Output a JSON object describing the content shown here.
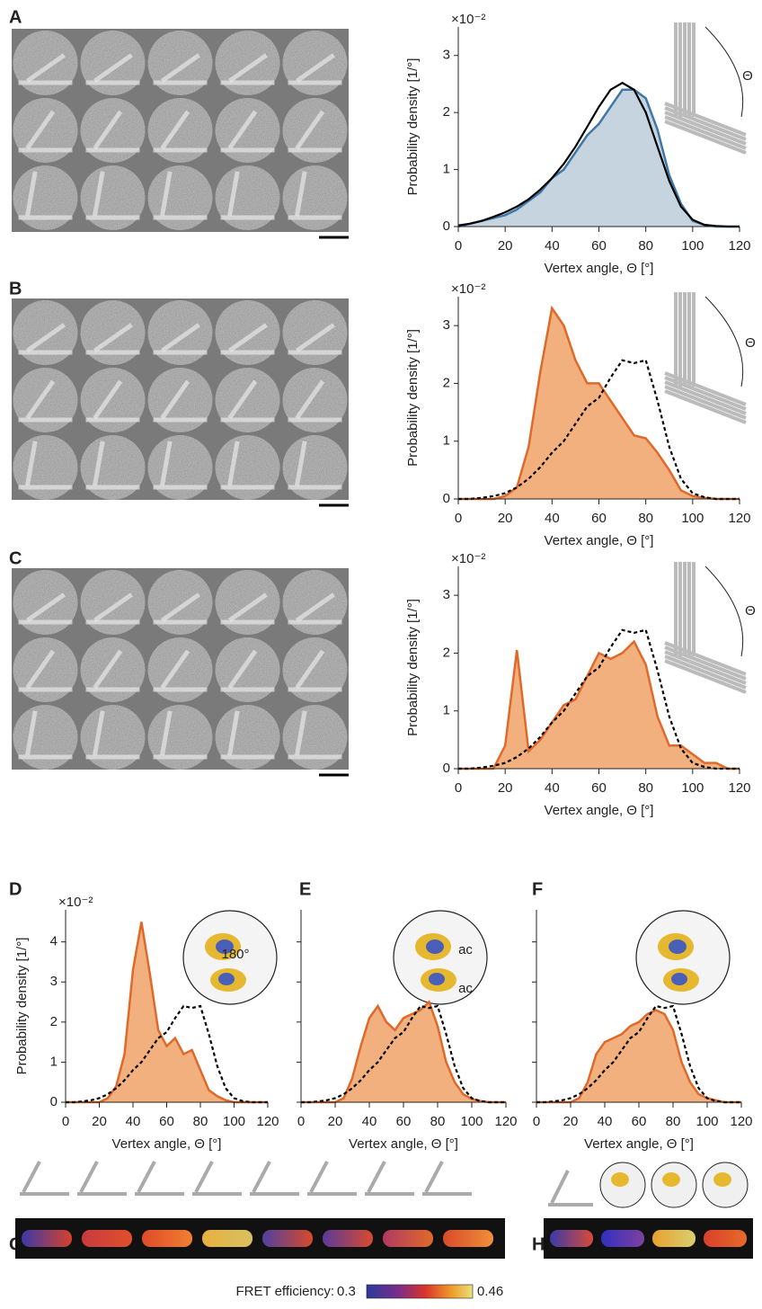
{
  "panel_labels": [
    "A",
    "B",
    "C",
    "D",
    "E",
    "F",
    "G",
    "H"
  ],
  "colorbar": {
    "title": "FRET efficiency:",
    "min": 0.3,
    "max": 0.46
  },
  "chart_data": [
    {
      "type": "area",
      "xlabel": "Vertex angle, Θ [°]",
      "ylabel": "Probability density [1/°]",
      "y_multiplier": "×10⁻²",
      "x": [
        0,
        5,
        10,
        15,
        20,
        25,
        30,
        35,
        40,
        45,
        50,
        55,
        60,
        65,
        70,
        75,
        80,
        85,
        90,
        95,
        100,
        105,
        110,
        115,
        120
      ],
      "series": [
        {
          "style": "fill",
          "color": "#3f78a8",
          "fill": "#c6d4e0",
          "values": [
            0,
            0.05,
            0.1,
            0.15,
            0.2,
            0.3,
            0.45,
            0.6,
            0.85,
            1.0,
            1.3,
            1.6,
            1.8,
            2.1,
            2.4,
            2.4,
            2.25,
            1.7,
            0.9,
            0.4,
            0.1,
            0.03,
            0,
            0,
            0
          ]
        },
        {
          "style": "line",
          "color": "#000000",
          "values": [
            0.02,
            0.05,
            0.1,
            0.17,
            0.25,
            0.35,
            0.48,
            0.65,
            0.85,
            1.1,
            1.4,
            1.75,
            2.1,
            2.4,
            2.52,
            2.4,
            2.0,
            1.4,
            0.8,
            0.35,
            0.12,
            0.03,
            0.01,
            0,
            0
          ]
        }
      ],
      "xlim": [
        0,
        120
      ],
      "ylim": [
        0,
        3.5
      ],
      "xticks": [
        0,
        20,
        40,
        60,
        80,
        100,
        120
      ],
      "yticks": [
        0,
        1,
        2,
        3
      ],
      "annotations": [
        "Θ"
      ]
    },
    {
      "type": "area",
      "xlabel": "Vertex angle, Θ [°]",
      "ylabel": "Probability density [1/°]",
      "y_multiplier": "×10⁻²",
      "x": [
        0,
        5,
        10,
        15,
        20,
        25,
        30,
        35,
        40,
        45,
        50,
        55,
        60,
        65,
        70,
        75,
        80,
        85,
        90,
        95,
        100,
        105,
        110,
        115,
        120
      ],
      "series": [
        {
          "style": "fill",
          "color": "#e0692a",
          "fill": "#f2b07f",
          "values": [
            0,
            0,
            0,
            0,
            0.05,
            0.2,
            0.9,
            2.2,
            3.3,
            3.0,
            2.4,
            2.0,
            2.0,
            1.7,
            1.4,
            1.1,
            1.05,
            0.8,
            0.5,
            0.15,
            0.05,
            0.02,
            0,
            0,
            0
          ]
        },
        {
          "style": "dashed",
          "color": "#000000",
          "values": [
            0,
            0,
            0.02,
            0.05,
            0.1,
            0.2,
            0.35,
            0.55,
            0.8,
            1.0,
            1.3,
            1.6,
            1.75,
            2.1,
            2.4,
            2.35,
            2.4,
            1.7,
            0.9,
            0.35,
            0.1,
            0.03,
            0,
            0,
            0
          ]
        }
      ],
      "xlim": [
        0,
        120
      ],
      "ylim": [
        0,
        3.5
      ],
      "xticks": [
        0,
        20,
        40,
        60,
        80,
        100,
        120
      ],
      "yticks": [
        0,
        1,
        2,
        3
      ],
      "annotations": [
        "Θ"
      ]
    },
    {
      "type": "area",
      "xlabel": "Vertex angle, Θ [°]",
      "ylabel": "Probability density [1/°]",
      "y_multiplier": "×10⁻²",
      "x": [
        0,
        5,
        10,
        15,
        20,
        25,
        30,
        35,
        40,
        45,
        50,
        55,
        60,
        65,
        70,
        75,
        80,
        85,
        90,
        95,
        100,
        105,
        110,
        115,
        120
      ],
      "series": [
        {
          "style": "fill",
          "color": "#e0692a",
          "fill": "#f2b07f",
          "values": [
            0,
            0,
            0,
            0,
            0.4,
            2.05,
            0.3,
            0.5,
            0.8,
            1.1,
            1.2,
            1.6,
            2.0,
            1.9,
            2.0,
            2.2,
            1.8,
            0.9,
            0.4,
            0.4,
            0.25,
            0.1,
            0.1,
            0,
            0
          ]
        },
        {
          "style": "dashed",
          "color": "#000000",
          "values": [
            0,
            0,
            0.02,
            0.05,
            0.1,
            0.2,
            0.35,
            0.55,
            0.8,
            1.0,
            1.3,
            1.6,
            1.75,
            2.1,
            2.4,
            2.35,
            2.4,
            1.7,
            0.9,
            0.35,
            0.1,
            0.03,
            0,
            0,
            0
          ]
        }
      ],
      "xlim": [
        0,
        120
      ],
      "ylim": [
        0,
        3.5
      ],
      "xticks": [
        0,
        20,
        40,
        60,
        80,
        100,
        120
      ],
      "yticks": [
        0,
        1,
        2,
        3
      ],
      "annotations": [
        "Θ"
      ]
    },
    {
      "type": "area",
      "xlabel": "Vertex angle, Θ [°]",
      "ylabel": "Probability density [1/°]",
      "y_multiplier": "×10⁻²",
      "x": [
        0,
        5,
        10,
        15,
        20,
        25,
        30,
        35,
        40,
        45,
        50,
        55,
        60,
        65,
        70,
        75,
        80,
        85,
        90,
        95,
        100,
        105,
        110,
        115,
        120
      ],
      "series": [
        {
          "style": "fill",
          "color": "#e0692a",
          "fill": "#f2b07f",
          "values": [
            0,
            0,
            0,
            0,
            0,
            0.1,
            0.4,
            1.2,
            3.3,
            4.5,
            3.2,
            1.8,
            1.4,
            1.6,
            1.2,
            1.3,
            0.8,
            0.3,
            0.15,
            0.05,
            0,
            0,
            0,
            0,
            0
          ]
        },
        {
          "style": "dashed",
          "color": "#000000",
          "values": [
            0,
            0,
            0.02,
            0.05,
            0.1,
            0.2,
            0.35,
            0.55,
            0.8,
            1.0,
            1.3,
            1.6,
            1.75,
            2.1,
            2.4,
            2.35,
            2.4,
            1.7,
            0.9,
            0.35,
            0.1,
            0.03,
            0,
            0,
            0
          ]
        }
      ],
      "xlim": [
        0,
        120
      ],
      "ylim": [
        0,
        4.8
      ],
      "xticks": [
        0,
        20,
        40,
        60,
        80,
        100,
        120
      ],
      "yticks": [
        0,
        1,
        2,
        3,
        4
      ],
      "annotations": [
        "180°"
      ]
    },
    {
      "type": "area",
      "xlabel": "Vertex angle, Θ [°]",
      "ytick_labels": false,
      "x": [
        0,
        5,
        10,
        15,
        20,
        25,
        30,
        35,
        40,
        45,
        50,
        55,
        60,
        65,
        70,
        75,
        80,
        85,
        90,
        95,
        100,
        105,
        110,
        115,
        120
      ],
      "series": [
        {
          "style": "fill",
          "color": "#e0692a",
          "fill": "#f2b07f",
          "values": [
            0,
            0,
            0,
            0,
            0,
            0.1,
            0.6,
            1.4,
            2.1,
            2.4,
            2.0,
            1.8,
            2.1,
            2.2,
            2.3,
            2.5,
            1.9,
            1.0,
            0.5,
            0.2,
            0.08,
            0.03,
            0,
            0,
            0
          ]
        },
        {
          "style": "dashed",
          "color": "#000000",
          "values": [
            0,
            0,
            0.02,
            0.05,
            0.1,
            0.2,
            0.35,
            0.55,
            0.8,
            1.0,
            1.3,
            1.6,
            1.75,
            2.1,
            2.4,
            2.35,
            2.4,
            1.7,
            0.9,
            0.35,
            0.1,
            0.03,
            0,
            0,
            0
          ]
        }
      ],
      "xlim": [
        0,
        120
      ],
      "ylim": [
        0,
        4.8
      ],
      "xticks": [
        0,
        20,
        40,
        60,
        80,
        100,
        120
      ],
      "yticks": [
        0,
        1,
        2,
        3,
        4
      ],
      "annotations": [
        "ac",
        "ac"
      ]
    },
    {
      "type": "area",
      "xlabel": "Vertex angle, Θ [°]",
      "ytick_labels": false,
      "x": [
        0,
        5,
        10,
        15,
        20,
        25,
        30,
        35,
        40,
        45,
        50,
        55,
        60,
        65,
        70,
        75,
        80,
        85,
        90,
        95,
        100,
        105,
        110,
        115,
        120
      ],
      "series": [
        {
          "style": "fill",
          "color": "#e0692a",
          "fill": "#f2b07f",
          "values": [
            0,
            0,
            0,
            0,
            0,
            0.1,
            0.5,
            1.2,
            1.5,
            1.6,
            1.7,
            1.9,
            2.0,
            2.2,
            2.3,
            2.2,
            1.8,
            1.0,
            0.5,
            0.2,
            0.1,
            0.05,
            0,
            0,
            0
          ]
        },
        {
          "style": "dashed",
          "color": "#000000",
          "values": [
            0,
            0,
            0.02,
            0.05,
            0.1,
            0.2,
            0.35,
            0.55,
            0.8,
            1.0,
            1.3,
            1.6,
            1.75,
            2.1,
            2.4,
            2.35,
            2.4,
            1.7,
            0.9,
            0.35,
            0.1,
            0.03,
            0,
            0,
            0
          ]
        }
      ],
      "xlim": [
        0,
        120
      ],
      "ylim": [
        0,
        4.8
      ],
      "xticks": [
        0,
        20,
        40,
        60,
        80,
        100,
        120
      ],
      "yticks": [
        0,
        1,
        2,
        3,
        4
      ],
      "annotations": []
    }
  ]
}
